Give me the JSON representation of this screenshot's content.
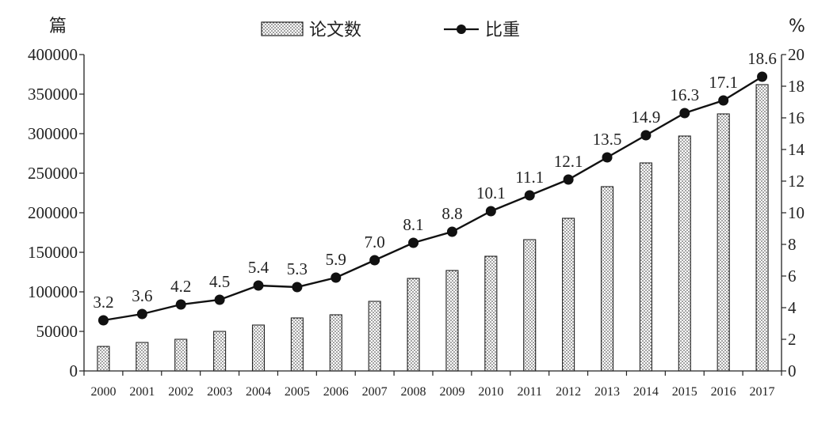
{
  "chart_data": {
    "type": "bar",
    "title": "",
    "xlabel": "",
    "ylabel": "篇",
    "y2label": "%",
    "categories": [
      "2000",
      "2001",
      "2002",
      "2003",
      "2004",
      "2005",
      "2006",
      "2007",
      "2008",
      "2009",
      "2010",
      "2011",
      "2012",
      "2013",
      "2014",
      "2015",
      "2016",
      "2017"
    ],
    "ylim": [
      0,
      400000
    ],
    "y_ticks": [
      "0",
      "50000",
      "100000",
      "150000",
      "200000",
      "250000",
      "300000",
      "350000",
      "400000"
    ],
    "y2lim": [
      0,
      20
    ],
    "y2_ticks": [
      "0",
      "2",
      "4",
      "6",
      "8",
      "10",
      "12",
      "14",
      "16",
      "18",
      "20"
    ],
    "series": [
      {
        "name": "论文数",
        "kind": "bar",
        "axis": "left",
        "values": [
          31000,
          36000,
          40000,
          50000,
          58000,
          67000,
          71000,
          88000,
          117000,
          127000,
          145000,
          166000,
          193000,
          233000,
          263000,
          297000,
          325000,
          362000
        ]
      },
      {
        "name": "比重",
        "kind": "line",
        "axis": "right",
        "values": [
          3.2,
          3.6,
          4.2,
          4.5,
          5.4,
          5.3,
          5.9,
          7.0,
          8.1,
          8.8,
          10.1,
          11.1,
          12.1,
          13.5,
          14.9,
          16.3,
          17.1,
          18.6
        ],
        "labels": [
          "3.2",
          "3.6",
          "4.2",
          "4.5",
          "5.4",
          "5.3",
          "5.9",
          "7.0",
          "8.1",
          "8.8",
          "10.1",
          "11.1",
          "12.1",
          "13.5",
          "14.9",
          "16.3",
          "17.1",
          "18.6"
        ]
      }
    ],
    "legend_position": "top-center",
    "grid": false,
    "colors": {
      "axis": "#222222",
      "bar_fill": "#ffffff",
      "bar_dots": "#333333",
      "line": "#111111"
    }
  }
}
